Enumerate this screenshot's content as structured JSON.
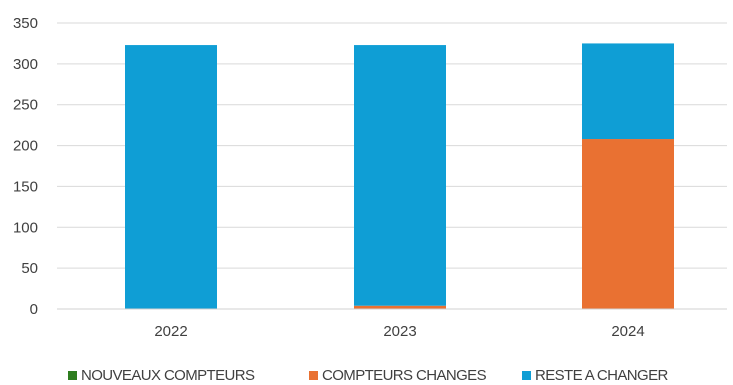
{
  "chart_data": {
    "type": "bar",
    "stacked": true,
    "categories": [
      "2022",
      "2023",
      "2024"
    ],
    "series": [
      {
        "name": "NOUVEAUX COMPTEURS",
        "color": "#2e7d1f",
        "values": [
          0,
          0,
          0
        ]
      },
      {
        "name": "COMPTEURS CHANGES",
        "color": "#e97132",
        "values": [
          0,
          4,
          208
        ]
      },
      {
        "name": "RESTE A CHANGER",
        "color": "#0f9ed5",
        "values": [
          323,
          319,
          117
        ]
      }
    ],
    "title": "",
    "xlabel": "",
    "ylabel": "",
    "ylim": [
      0,
      350
    ],
    "yticks": [
      "0",
      "50",
      "100",
      "150",
      "200",
      "250",
      "300",
      "350"
    ],
    "grid": true,
    "legend_position": "bottom"
  }
}
